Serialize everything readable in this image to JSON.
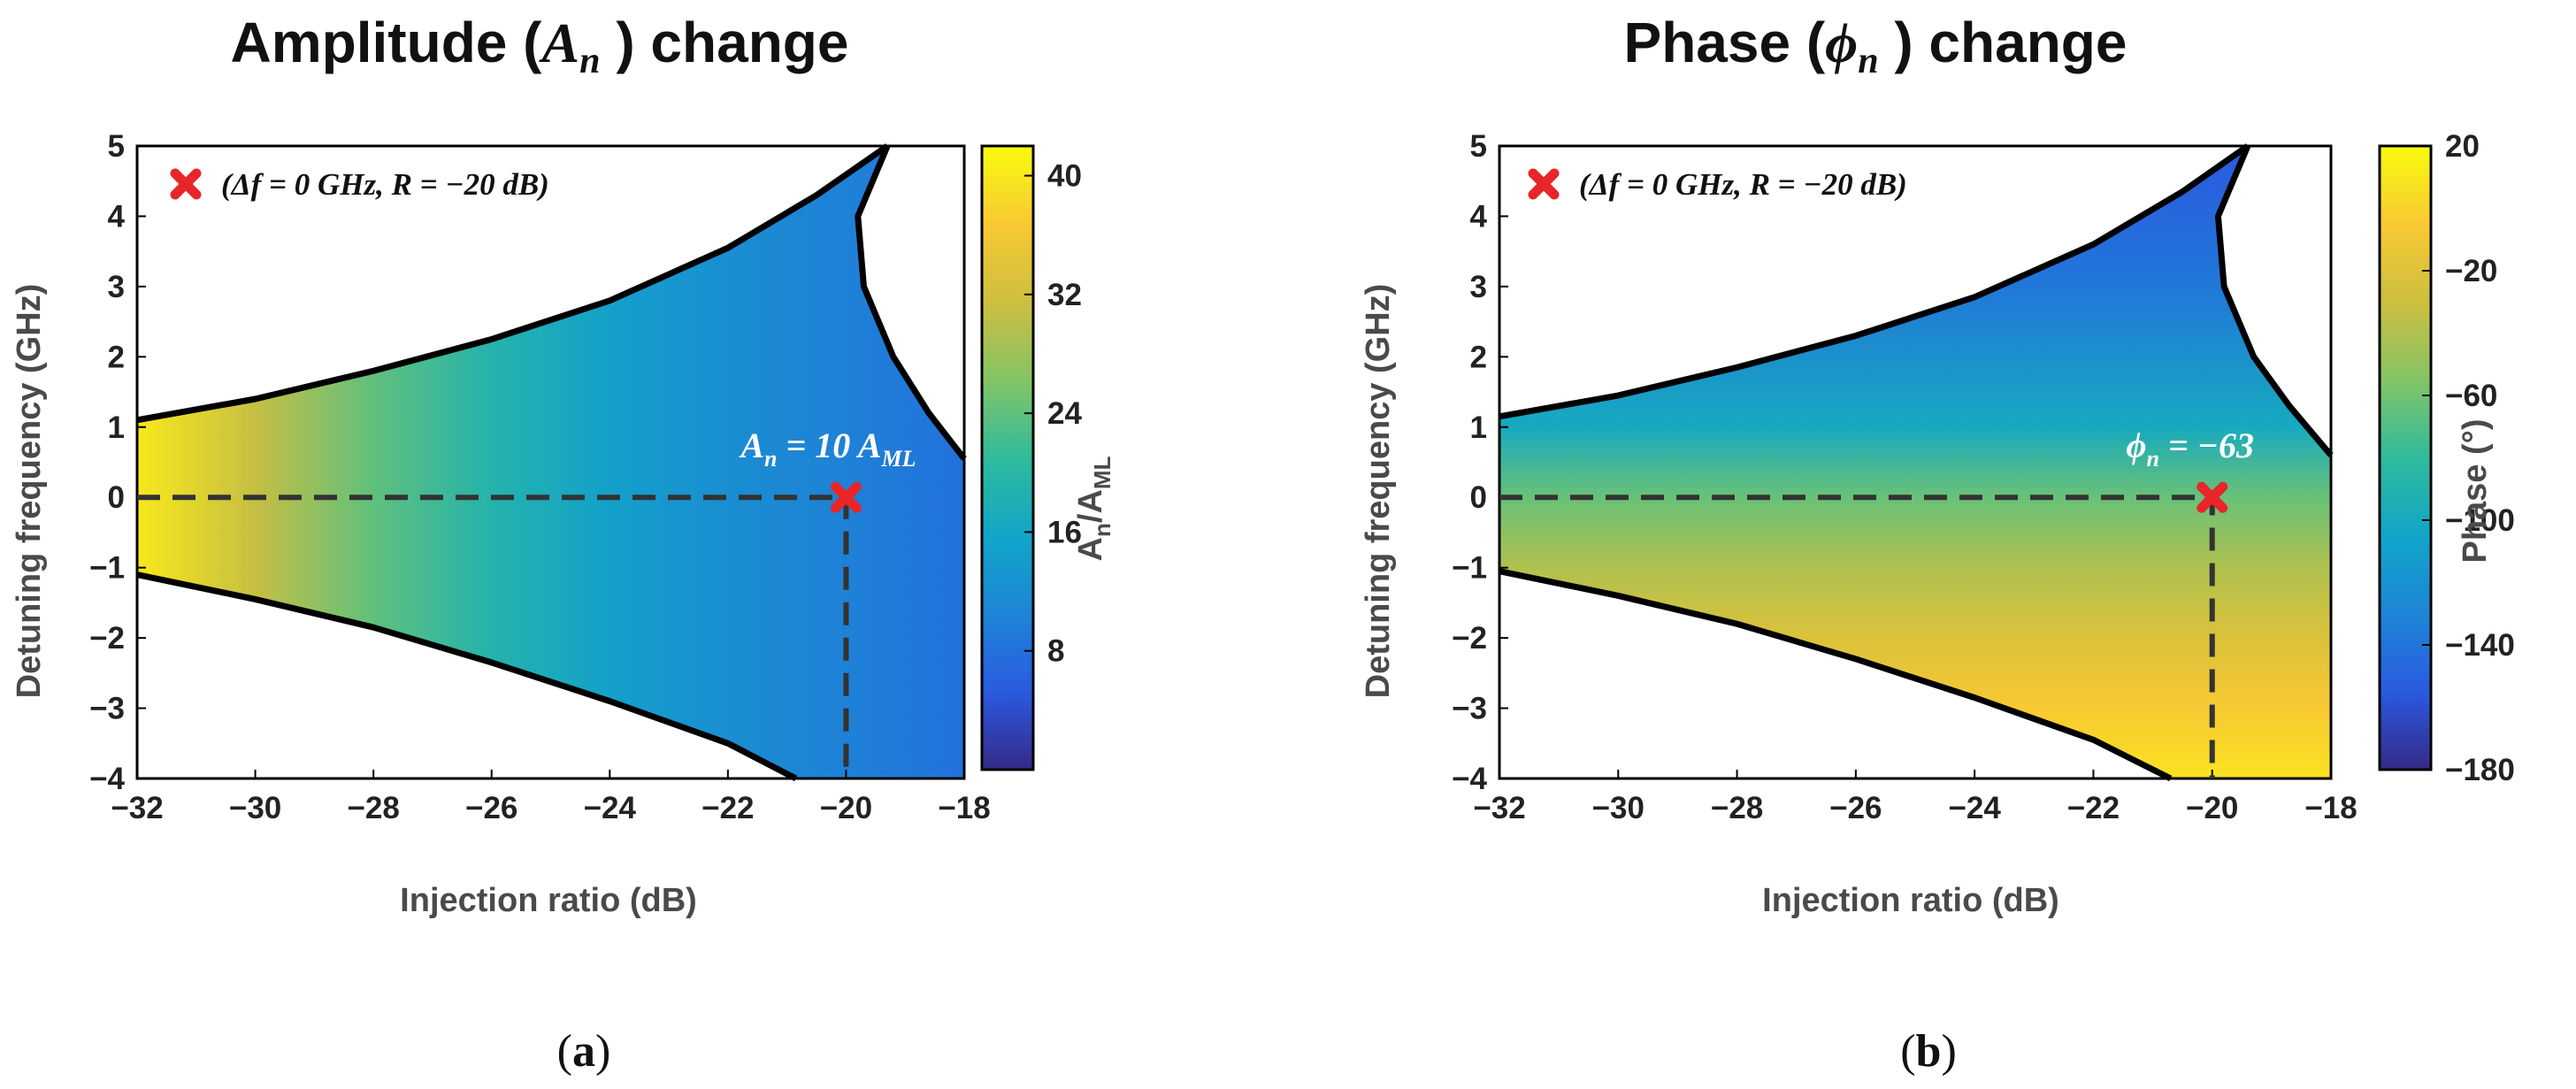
{
  "chart_data": [
    {
      "type": "heatmap",
      "panel_label": "(a)",
      "title": "Amplitude (Aₙ ) change",
      "title_prefix": "Amplitude (",
      "title_symbol": "A",
      "title_subscript": "n",
      "title_suffix": " ) change",
      "xlabel": "Injection ratio (dB)",
      "ylabel": "Detuning frequency (GHz)",
      "xlim": [
        -32,
        -18
      ],
      "ylim": [
        -4,
        5
      ],
      "xticks": [
        "−32",
        "−30",
        "−28",
        "−26",
        "−24",
        "−22",
        "−20",
        "−18"
      ],
      "xtick_values": [
        -32,
        -30,
        -28,
        -26,
        -24,
        -22,
        -20,
        -18
      ],
      "yticks": [
        "−4",
        "−3",
        "−2",
        "−1",
        "0",
        "1",
        "2",
        "3",
        "4",
        "5"
      ],
      "ytick_values": [
        -4,
        -3,
        -2,
        -1,
        0,
        1,
        2,
        3,
        4,
        5
      ],
      "colorbar": {
        "label": "Aₙ/Aₘₗ",
        "label_main": "A",
        "label_sub1": "n",
        "label_mid": "/A",
        "label_sub2": "ML",
        "range": [
          0,
          42
        ],
        "ticks": [
          "8",
          "16",
          "24",
          "32",
          "40"
        ],
        "tick_values": [
          8,
          16,
          24,
          32,
          40
        ]
      },
      "field_description": "amplitude decreases with injection ratio: ~40 at -32 dB to ~5 at -18 dB",
      "field_samples": [
        {
          "x": -32,
          "value": 40
        },
        {
          "x": -30,
          "value": 31
        },
        {
          "x": -28,
          "value": 24
        },
        {
          "x": -26,
          "value": 19
        },
        {
          "x": -24,
          "value": 15
        },
        {
          "x": -22,
          "value": 12
        },
        {
          "x": -20,
          "value": 10
        },
        {
          "x": -18,
          "value": 8
        }
      ],
      "boundary_upper": [
        {
          "x": -32,
          "y": 1.1
        },
        {
          "x": -30,
          "y": 1.4
        },
        {
          "x": -28,
          "y": 1.8
        },
        {
          "x": -26,
          "y": 2.25
        },
        {
          "x": -24,
          "y": 2.8
        },
        {
          "x": -22,
          "y": 3.55
        },
        {
          "x": -20.5,
          "y": 4.3
        },
        {
          "x": -19.3,
          "y": 5
        }
      ],
      "boundary_lower": [
        {
          "x": -32,
          "y": -1.1
        },
        {
          "x": -30,
          "y": -1.45
        },
        {
          "x": -28,
          "y": -1.85
        },
        {
          "x": -26,
          "y": -2.35
        },
        {
          "x": -24,
          "y": -2.9
        },
        {
          "x": -22,
          "y": -3.5
        },
        {
          "x": -20.85,
          "y": -4
        }
      ],
      "boundary_right": [
        {
          "x": -19.3,
          "y": 5
        },
        {
          "x": -19.8,
          "y": 4.0
        },
        {
          "x": -19.7,
          "y": 3.0
        },
        {
          "x": -19.2,
          "y": 2.0
        },
        {
          "x": -18.6,
          "y": 1.2
        },
        {
          "x": -18,
          "y": 0.55
        }
      ],
      "marker": {
        "x": -20,
        "y": 0,
        "label": "(Δf = 0 GHz, R = −20 dB)",
        "color": "#e8262a"
      },
      "annotation": "Aₙ = 10 Aₘₗ",
      "annotation_main": "A",
      "annotation_sub": "n",
      "annotation_mid": " = 10 A",
      "annotation_sub2": "ML"
    },
    {
      "type": "heatmap",
      "panel_label": "(b)",
      "title": "Phase (ϕₙ ) change",
      "title_prefix": "Phase (",
      "title_symbol": "ϕ",
      "title_subscript": "n",
      "title_suffix": " ) change",
      "xlabel": "Injection ratio (dB)",
      "ylabel": "Detuning frequency (GHz)",
      "xlim": [
        -32,
        -18
      ],
      "ylim": [
        -4,
        5
      ],
      "xticks": [
        "−32",
        "−30",
        "−28",
        "−26",
        "−24",
        "−22",
        "−20",
        "−18"
      ],
      "xtick_values": [
        -32,
        -30,
        -28,
        -26,
        -24,
        -22,
        -20,
        -18
      ],
      "yticks": [
        "−4",
        "−3",
        "−2",
        "−1",
        "0",
        "1",
        "2",
        "3",
        "4",
        "5"
      ],
      "ytick_values": [
        -4,
        -3,
        -2,
        -1,
        0,
        1,
        2,
        3,
        4,
        5
      ],
      "colorbar": {
        "label": "Phase (°)",
        "range": [
          -180,
          20
        ],
        "ticks": [
          "20",
          "−20",
          "−60",
          "−100",
          "−140",
          "−180"
        ],
        "tick_values": [
          20,
          -20,
          -60,
          -100,
          -140,
          -180
        ]
      },
      "field_description": "phase varies mainly with detuning: ~ -150 at top, ~ -63 near 0 GHz, ~ 10 at bottom",
      "field_samples": [
        {
          "y": 5,
          "value": -155
        },
        {
          "y": 3,
          "value": -138
        },
        {
          "y": 1,
          "value": -100
        },
        {
          "y": 0,
          "value": -63
        },
        {
          "y": -1,
          "value": -40
        },
        {
          "y": -2,
          "value": -22
        },
        {
          "y": -3,
          "value": -5
        },
        {
          "y": -4,
          "value": 8
        }
      ],
      "boundary_upper": [
        {
          "x": -32,
          "y": 1.15
        },
        {
          "x": -30,
          "y": 1.45
        },
        {
          "x": -28,
          "y": 1.85
        },
        {
          "x": -26,
          "y": 2.3
        },
        {
          "x": -24,
          "y": 2.85
        },
        {
          "x": -22,
          "y": 3.6
        },
        {
          "x": -20.5,
          "y": 4.35
        },
        {
          "x": -19.4,
          "y": 5
        }
      ],
      "boundary_lower": [
        {
          "x": -32,
          "y": -1.05
        },
        {
          "x": -30,
          "y": -1.4
        },
        {
          "x": -28,
          "y": -1.8
        },
        {
          "x": -26,
          "y": -2.3
        },
        {
          "x": -24,
          "y": -2.85
        },
        {
          "x": -22,
          "y": -3.45
        },
        {
          "x": -20.7,
          "y": -4
        }
      ],
      "boundary_right": [
        {
          "x": -19.4,
          "y": 5
        },
        {
          "x": -19.9,
          "y": 4.0
        },
        {
          "x": -19.8,
          "y": 3.0
        },
        {
          "x": -19.3,
          "y": 2.0
        },
        {
          "x": -18.7,
          "y": 1.3
        },
        {
          "x": -18,
          "y": 0.6
        }
      ],
      "marker": {
        "x": -20,
        "y": 0,
        "label": "(Δf = 0 GHz, R = −20 dB)",
        "color": "#e8262a"
      },
      "annotation": "ϕₙ = −63",
      "annotation_main": "ϕ",
      "annotation_sub": "n",
      "annotation_mid": " = −63",
      "annotation_sub2": ""
    }
  ]
}
